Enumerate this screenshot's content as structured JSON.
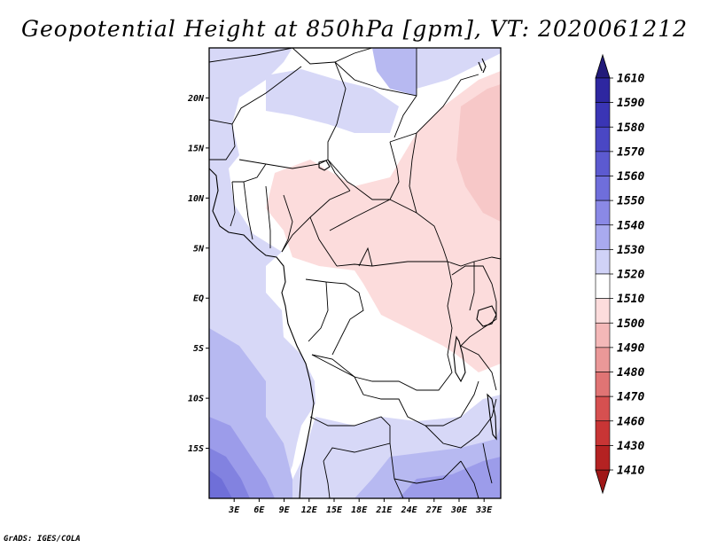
{
  "title": "Geopotential Height at 850hPa [gpm], VT: 2020061212",
  "footer": "GrADS: IGES/COLA",
  "map": {
    "variable": "Geopotential Height",
    "level": "850hPa",
    "units": "gpm",
    "valid_time": "2020061212",
    "lon_range": [
      0,
      35
    ],
    "lat_range": [
      -20,
      25
    ],
    "lat_ticks": [
      {
        "value": 20,
        "label": "20N"
      },
      {
        "value": 15,
        "label": "15N"
      },
      {
        "value": 10,
        "label": "10N"
      },
      {
        "value": 5,
        "label": "5N"
      },
      {
        "value": 0,
        "label": "EQ"
      },
      {
        "value": -5,
        "label": "5S"
      },
      {
        "value": -10,
        "label": "10S"
      },
      {
        "value": -15,
        "label": "15S"
      }
    ],
    "lon_ticks": [
      {
        "value": 3,
        "label": "3E"
      },
      {
        "value": 6,
        "label": "6E"
      },
      {
        "value": 9,
        "label": "9E"
      },
      {
        "value": 12,
        "label": "12E"
      },
      {
        "value": 15,
        "label": "15E"
      },
      {
        "value": 18,
        "label": "18E"
      },
      {
        "value": 21,
        "label": "21E"
      },
      {
        "value": 24,
        "label": "24E"
      },
      {
        "value": 27,
        "label": "27E"
      },
      {
        "value": 30,
        "label": "30E"
      },
      {
        "value": 33,
        "label": "33E"
      }
    ]
  },
  "colorbar": {
    "levels": [
      {
        "label": "1610",
        "color": "#2a1f8f"
      },
      {
        "label": "1590",
        "color": "#2e27a0"
      },
      {
        "label": "1580",
        "color": "#3a35b5"
      },
      {
        "label": "1570",
        "color": "#4a47c4"
      },
      {
        "label": "1560",
        "color": "#5c5ad0"
      },
      {
        "label": "1550",
        "color": "#6f6edb"
      },
      {
        "label": "1540",
        "color": "#8a89e6"
      },
      {
        "label": "1530",
        "color": "#a9aaef"
      },
      {
        "label": "1520",
        "color": "#d0d2f7"
      },
      {
        "label": "1510",
        "color": "#ffffff"
      },
      {
        "label": "1500",
        "color": "#fcdcdc"
      },
      {
        "label": "1490",
        "color": "#f4b8b8"
      },
      {
        "label": "1480",
        "color": "#ea9898"
      },
      {
        "label": "1470",
        "color": "#e07474"
      },
      {
        "label": "1460",
        "color": "#d65050"
      },
      {
        "label": "1430",
        "color": "#c83535"
      },
      {
        "label": "1410",
        "color": "#b42222"
      }
    ],
    "top_color": "#221a7a",
    "bottom_color": "#a01818"
  },
  "shading_colors": {
    "c1500": "#fcdcdc",
    "c1490": "#f7c8c8",
    "c1520": "#d7d8f7",
    "c1530": "#b7b9f1",
    "c1540": "#9c9cea",
    "c1550": "#8282e0",
    "c1560": "#6f6fd8"
  }
}
